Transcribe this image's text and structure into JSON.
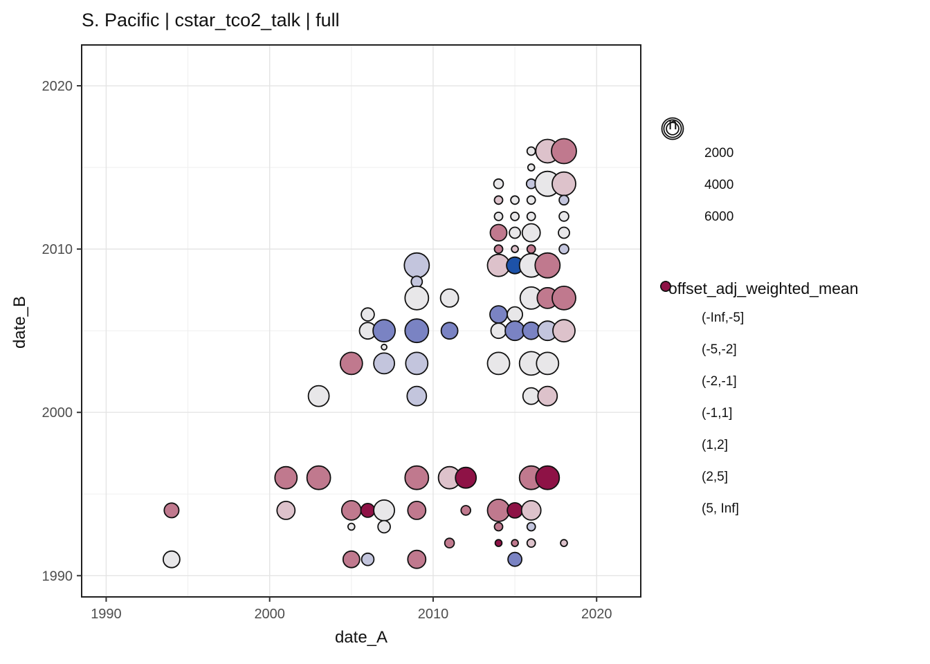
{
  "chart_data": {
    "type": "scatter",
    "title": "S. Pacific | cstar_tco2_talk | full",
    "xlabel": "date_A",
    "ylabel": "date_B",
    "x_domain": [
      1988.5,
      2022.7
    ],
    "y_domain": [
      1988.7,
      2022.5
    ],
    "x_ticks": [
      1990,
      2000,
      2010,
      2020
    ],
    "y_ticks": [
      1990,
      2000,
      2010,
      2020
    ],
    "x_minor_ticks": [
      1995,
      2005,
      2015
    ],
    "y_minor_ticks": [
      1995,
      2005,
      2015
    ],
    "grid": true,
    "legend_position": "right",
    "size_legend": {
      "title": "n",
      "values": [
        2000,
        4000,
        6000
      ]
    },
    "color_legend": {
      "title": "offset_adj_weighted_mean",
      "bins": [
        {
          "label": "(-Inf,-5]",
          "color": "#1d52a8"
        },
        {
          "label": "(-5,-2]",
          "color": "#7a83c3"
        },
        {
          "label": "(-2,-1]",
          "color": "#c3c5dd"
        },
        {
          "label": "(-1,1]",
          "color": "#e8e7e9"
        },
        {
          "label": "(1,2]",
          "color": "#ddc2cb"
        },
        {
          "label": "(2,5]",
          "color": "#c0798e"
        },
        {
          "label": "(5, Inf]",
          "color": "#8e1246"
        }
      ]
    },
    "style": {
      "point_stroke": "#101010",
      "panel_border": "#1f1f1f",
      "grid_major": "#e4e4e4",
      "grid_minor": "#f0f0f0",
      "tick_label_color": "#4d4d4d",
      "tick_color": "#333333"
    },
    "points": [
      {
        "date_A": 1994,
        "date_B": 1994,
        "n": 2800,
        "bin": "(2,5]"
      },
      {
        "date_A": 1994,
        "date_B": 1991,
        "n": 3600,
        "bin": "(-1,1]"
      },
      {
        "date_A": 2001,
        "date_B": 1996,
        "n": 6400,
        "bin": "(2,5]"
      },
      {
        "date_A": 2003,
        "date_B": 1996,
        "n": 7200,
        "bin": "(2,5]"
      },
      {
        "date_A": 2009,
        "date_B": 1996,
        "n": 7200,
        "bin": "(2,5]"
      },
      {
        "date_A": 2011,
        "date_B": 1996,
        "n": 6400,
        "bin": "(1,2]"
      },
      {
        "date_A": 2012,
        "date_B": 1996,
        "n": 5600,
        "bin": "(5, Inf]"
      },
      {
        "date_A": 2016,
        "date_B": 1996,
        "n": 7200,
        "bin": "(2,5]"
      },
      {
        "date_A": 2017,
        "date_B": 1996,
        "n": 7200,
        "bin": "(5, Inf]"
      },
      {
        "date_A": 2001,
        "date_B": 1994,
        "n": 4200,
        "bin": "(1,2]"
      },
      {
        "date_A": 2005,
        "date_B": 1994,
        "n": 4900,
        "bin": "(2,5]"
      },
      {
        "date_A": 2006,
        "date_B": 1994,
        "n": 2500,
        "bin": "(5, Inf]"
      },
      {
        "date_A": 2007,
        "date_B": 1994,
        "n": 5600,
        "bin": "(-1,1]"
      },
      {
        "date_A": 2009,
        "date_B": 1994,
        "n": 4200,
        "bin": "(2,5]"
      },
      {
        "date_A": 2012,
        "date_B": 1994,
        "n": 1200,
        "bin": "(2,5]"
      },
      {
        "date_A": 2014,
        "date_B": 1994,
        "n": 6400,
        "bin": "(2,5]"
      },
      {
        "date_A": 2015,
        "date_B": 1994,
        "n": 3000,
        "bin": "(5, Inf]"
      },
      {
        "date_A": 2016,
        "date_B": 1994,
        "n": 4900,
        "bin": "(1,2]"
      },
      {
        "date_A": 2005,
        "date_B": 1993,
        "n": 600,
        "bin": "(-1,1]"
      },
      {
        "date_A": 2007,
        "date_B": 1993,
        "n": 2000,
        "bin": "(-1,1]"
      },
      {
        "date_A": 2014,
        "date_B": 1993,
        "n": 900,
        "bin": "(2,5]"
      },
      {
        "date_A": 2016,
        "date_B": 1993,
        "n": 900,
        "bin": "(-2,-1]"
      },
      {
        "date_A": 2011,
        "date_B": 1992,
        "n": 1200,
        "bin": "(2,5]"
      },
      {
        "date_A": 2014,
        "date_B": 1992,
        "n": 600,
        "bin": "(5, Inf]"
      },
      {
        "date_A": 2015,
        "date_B": 1992,
        "n": 600,
        "bin": "(2,5]"
      },
      {
        "date_A": 2016,
        "date_B": 1992,
        "n": 900,
        "bin": "(1,2]"
      },
      {
        "date_A": 2018,
        "date_B": 1992,
        "n": 600,
        "bin": "(1,2]"
      },
      {
        "date_A": 2005,
        "date_B": 1991,
        "n": 3600,
        "bin": "(2,5]"
      },
      {
        "date_A": 2006,
        "date_B": 1991,
        "n": 2000,
        "bin": "(-2,-1]"
      },
      {
        "date_A": 2009,
        "date_B": 1991,
        "n": 4200,
        "bin": "(2,5]"
      },
      {
        "date_A": 2015,
        "date_B": 1991,
        "n": 2500,
        "bin": "(-5,-2]"
      },
      {
        "date_A": 2003,
        "date_B": 2001,
        "n": 5600,
        "bin": "(-1,1]"
      },
      {
        "date_A": 2009,
        "date_B": 2001,
        "n": 4900,
        "bin": "(-2,-1]"
      },
      {
        "date_A": 2005,
        "date_B": 2003,
        "n": 6400,
        "bin": "(2,5]"
      },
      {
        "date_A": 2007,
        "date_B": 2003,
        "n": 5600,
        "bin": "(-2,-1]"
      },
      {
        "date_A": 2009,
        "date_B": 2003,
        "n": 6400,
        "bin": "(-2,-1]"
      },
      {
        "date_A": 2007,
        "date_B": 2004,
        "n": 400,
        "bin": "(-1,1]"
      },
      {
        "date_A": 2006,
        "date_B": 2005,
        "n": 3600,
        "bin": "(-1,1]"
      },
      {
        "date_A": 2007,
        "date_B": 2005,
        "n": 6400,
        "bin": "(-5,-2]"
      },
      {
        "date_A": 2009,
        "date_B": 2005,
        "n": 7200,
        "bin": "(-5,-2]"
      },
      {
        "date_A": 2011,
        "date_B": 2005,
        "n": 3600,
        "bin": "(-5,-2]"
      },
      {
        "date_A": 2006,
        "date_B": 2006,
        "n": 2200,
        "bin": "(-1,1]"
      },
      {
        "date_A": 2009,
        "date_B": 2007,
        "n": 7200,
        "bin": "(-1,1]"
      },
      {
        "date_A": 2011,
        "date_B": 2007,
        "n": 4200,
        "bin": "(-1,1]"
      },
      {
        "date_A": 2009,
        "date_B": 2008,
        "n": 1600,
        "bin": "(-2,-1]"
      },
      {
        "date_A": 2009,
        "date_B": 2009,
        "n": 8100,
        "bin": "(-2,-1]"
      },
      {
        "date_A": 2016,
        "date_B": 2001,
        "n": 3600,
        "bin": "(-1,1]"
      },
      {
        "date_A": 2017,
        "date_B": 2001,
        "n": 4900,
        "bin": "(1,2]"
      },
      {
        "date_A": 2014,
        "date_B": 2003,
        "n": 6400,
        "bin": "(-1,1]"
      },
      {
        "date_A": 2016,
        "date_B": 2003,
        "n": 7200,
        "bin": "(-1,1]"
      },
      {
        "date_A": 2017,
        "date_B": 2003,
        "n": 6400,
        "bin": "(-1,1]"
      },
      {
        "date_A": 2014,
        "date_B": 2005,
        "n": 3000,
        "bin": "(-1,1]"
      },
      {
        "date_A": 2015,
        "date_B": 2005,
        "n": 4900,
        "bin": "(-5,-2]"
      },
      {
        "date_A": 2016,
        "date_B": 2005,
        "n": 3900,
        "bin": "(-5,-2]"
      },
      {
        "date_A": 2017,
        "date_B": 2005,
        "n": 4900,
        "bin": "(-2,-1]"
      },
      {
        "date_A": 2018,
        "date_B": 2005,
        "n": 6400,
        "bin": "(1,2]"
      },
      {
        "date_A": 2014,
        "date_B": 2006,
        "n": 3900,
        "bin": "(-5,-2]"
      },
      {
        "date_A": 2015,
        "date_B": 2006,
        "n": 3000,
        "bin": "(-1,1]"
      },
      {
        "date_A": 2016,
        "date_B": 2007,
        "n": 6400,
        "bin": "(-1,1]"
      },
      {
        "date_A": 2017,
        "date_B": 2007,
        "n": 5600,
        "bin": "(2,5]"
      },
      {
        "date_A": 2018,
        "date_B": 2007,
        "n": 7200,
        "bin": "(2,5]"
      },
      {
        "date_A": 2014,
        "date_B": 2009,
        "n": 6400,
        "bin": "(1,2]"
      },
      {
        "date_A": 2015,
        "date_B": 2009,
        "n": 3600,
        "bin": "(-Inf,-5]"
      },
      {
        "date_A": 2016,
        "date_B": 2009,
        "n": 7200,
        "bin": "(-1,1]"
      },
      {
        "date_A": 2017,
        "date_B": 2009,
        "n": 8100,
        "bin": "(2,5]"
      },
      {
        "date_A": 2014,
        "date_B": 2010,
        "n": 900,
        "bin": "(2,5]"
      },
      {
        "date_A": 2015,
        "date_B": 2010,
        "n": 600,
        "bin": "(1,2]"
      },
      {
        "date_A": 2016,
        "date_B": 2010,
        "n": 900,
        "bin": "(2,5]"
      },
      {
        "date_A": 2018,
        "date_B": 2010,
        "n": 1200,
        "bin": "(-2,-1]"
      },
      {
        "date_A": 2014,
        "date_B": 2011,
        "n": 3600,
        "bin": "(2,5]"
      },
      {
        "date_A": 2015,
        "date_B": 2011,
        "n": 1600,
        "bin": "(-1,1]"
      },
      {
        "date_A": 2016,
        "date_B": 2011,
        "n": 4200,
        "bin": "(-1,1]"
      },
      {
        "date_A": 2018,
        "date_B": 2011,
        "n": 1600,
        "bin": "(-1,1]"
      },
      {
        "date_A": 2014,
        "date_B": 2012,
        "n": 900,
        "bin": "(-1,1]"
      },
      {
        "date_A": 2015,
        "date_B": 2012,
        "n": 900,
        "bin": "(-1,1]"
      },
      {
        "date_A": 2016,
        "date_B": 2012,
        "n": 900,
        "bin": "(-1,1]"
      },
      {
        "date_A": 2018,
        "date_B": 2012,
        "n": 1200,
        "bin": "(-1,1]"
      },
      {
        "date_A": 2014,
        "date_B": 2013,
        "n": 900,
        "bin": "(1,2]"
      },
      {
        "date_A": 2015,
        "date_B": 2013,
        "n": 900,
        "bin": "(-1,1]"
      },
      {
        "date_A": 2016,
        "date_B": 2013,
        "n": 900,
        "bin": "(-1,1]"
      },
      {
        "date_A": 2018,
        "date_B": 2013,
        "n": 1200,
        "bin": "(-2,-1]"
      },
      {
        "date_A": 2014,
        "date_B": 2014,
        "n": 1200,
        "bin": "(-1,1]"
      },
      {
        "date_A": 2016,
        "date_B": 2014,
        "n": 1200,
        "bin": "(-2,-1]"
      },
      {
        "date_A": 2017,
        "date_B": 2014,
        "n": 8100,
        "bin": "(-1,1]"
      },
      {
        "date_A": 2018,
        "date_B": 2014,
        "n": 7200,
        "bin": "(1,2]"
      },
      {
        "date_A": 2016,
        "date_B": 2015,
        "n": 600,
        "bin": "(-1,1]"
      },
      {
        "date_A": 2016,
        "date_B": 2016,
        "n": 900,
        "bin": "(-1,1]"
      },
      {
        "date_A": 2017,
        "date_B": 2016,
        "n": 7200,
        "bin": "(1,2]"
      },
      {
        "date_A": 2018,
        "date_B": 2016,
        "n": 8100,
        "bin": "(2,5]"
      }
    ]
  }
}
